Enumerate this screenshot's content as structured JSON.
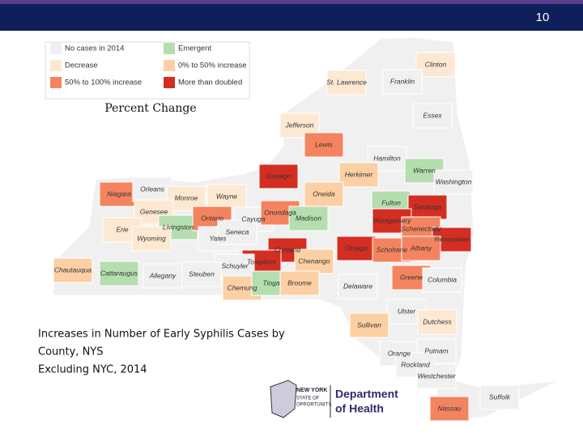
{
  "slide_number": "10",
  "legend": {
    "title": "Percent Change",
    "items": [
      {
        "label": "No cases in 2014",
        "color": "#f0f0f0"
      },
      {
        "label": "Decrease",
        "color": "#fde8d2"
      },
      {
        "label": "50% to 100% increase",
        "color": "#f4845f"
      },
      {
        "label": "Emergent",
        "color": "#b5deaf"
      },
      {
        "label": "0% to 50% increase",
        "color": "#fcd0a4"
      },
      {
        "label": "More than doubled",
        "color": "#d42e22"
      }
    ]
  },
  "counties": [
    {
      "name": "Clinton",
      "category": 1
    },
    {
      "name": "Franklin",
      "category": 0
    },
    {
      "name": "St. Lawrence",
      "category": 1
    },
    {
      "name": "Essex",
      "category": 0
    },
    {
      "name": "Jefferson",
      "category": 1
    },
    {
      "name": "Lewis",
      "category": 2
    },
    {
      "name": "Hamilton",
      "category": 0
    },
    {
      "name": "Warren",
      "category": 3
    },
    {
      "name": "Oswego",
      "category": 5
    },
    {
      "name": "Herkimer",
      "category": 4
    },
    {
      "name": "Washington",
      "category": 0
    },
    {
      "name": "Niagara",
      "category": 2
    },
    {
      "name": "Orleans",
      "category": 0
    },
    {
      "name": "Monroe",
      "category": 1
    },
    {
      "name": "Wayne",
      "category": 1
    },
    {
      "name": "Oneida",
      "category": 4
    },
    {
      "name": "Fulton",
      "category": 3
    },
    {
      "name": "Saratoga",
      "category": 5
    },
    {
      "name": "Genesee",
      "category": 1
    },
    {
      "name": "Cayuga",
      "category": 0
    },
    {
      "name": "Onondaga",
      "category": 2
    },
    {
      "name": "Madison",
      "category": 3
    },
    {
      "name": "Montgomery",
      "category": 5
    },
    {
      "name": "Schenectady",
      "category": 2
    },
    {
      "name": "Erie",
      "category": 1
    },
    {
      "name": "Livingston",
      "category": 3
    },
    {
      "name": "Ontario",
      "category": 2
    },
    {
      "name": "Yates",
      "category": 0
    },
    {
      "name": "Seneca",
      "category": 0
    },
    {
      "name": "Wyoming",
      "category": 1
    },
    {
      "name": "Rensselaer",
      "category": 5
    },
    {
      "name": "Cortland",
      "category": 5
    },
    {
      "name": "Otsego",
      "category": 5
    },
    {
      "name": "Schoharie",
      "category": 2
    },
    {
      "name": "Albany",
      "category": 2
    },
    {
      "name": "Chenango",
      "category": 4
    },
    {
      "name": "Tompkins",
      "category": 5
    },
    {
      "name": "Schuyler",
      "category": 0
    },
    {
      "name": "Chautauqua",
      "category": 4
    },
    {
      "name": "Cattaraugus",
      "category": 3
    },
    {
      "name": "Allegany",
      "category": 0
    },
    {
      "name": "Steuben",
      "category": 0
    },
    {
      "name": "Greene",
      "category": 2
    },
    {
      "name": "Columbia",
      "category": 0
    },
    {
      "name": "Chemung",
      "category": 4
    },
    {
      "name": "Tioga",
      "category": 3
    },
    {
      "name": "Broome",
      "category": 4
    },
    {
      "name": "Delaware",
      "category": 0
    },
    {
      "name": "Ulster",
      "category": 0
    },
    {
      "name": "Sullivan",
      "category": 4
    },
    {
      "name": "Dutchess",
      "category": 1
    },
    {
      "name": "Orange",
      "category": 0
    },
    {
      "name": "Putnam",
      "category": 0
    },
    {
      "name": "Rockland",
      "category": 0
    },
    {
      "name": "Westchester",
      "category": 0
    },
    {
      "name": "Suffolk",
      "category": 0
    },
    {
      "name": "Nassau",
      "category": 2
    }
  ],
  "caption": [
    "Increases in Number of Early Syphilis Cases by",
    "County, NYS",
    "Excluding NYC, 2014"
  ],
  "logo": {
    "state": [
      "NEW YORK",
      "STATE OF",
      "OPPORTUNITY."
    ],
    "department": [
      "Department",
      "of Health"
    ]
  }
}
